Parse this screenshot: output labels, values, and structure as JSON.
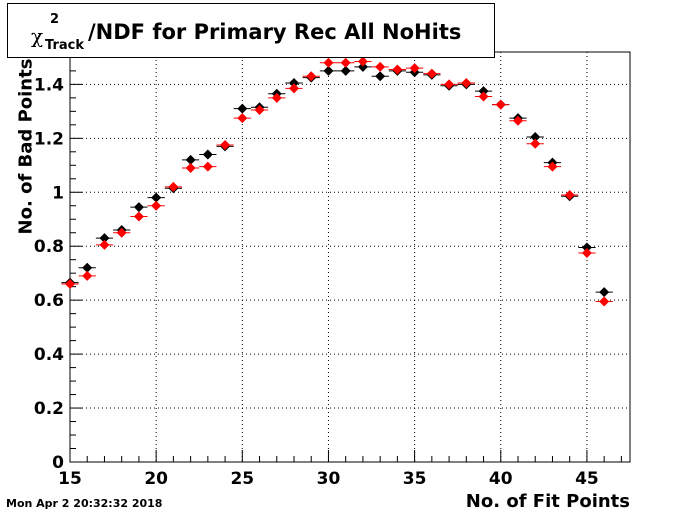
{
  "title": {
    "chi": "χ",
    "superscript": "2",
    "subscript": "Track",
    "main": "/NDF for Primary Rec All NoHits"
  },
  "footer": {
    "datestamp": "Mon Apr  2 20:32:32 2018"
  },
  "colors": {
    "series_black": "#000000",
    "series_red": "#ff0000",
    "frame": "#000000",
    "grid": "#000000"
  },
  "chart_data": {
    "type": "scatter",
    "title": "χ2Track/NDF for Primary Rec All NoHits",
    "xlabel": "No. of Fit Points",
    "ylabel": "No. of Bad Points",
    "xlim": [
      15,
      47.5
    ],
    "ylim": [
      0,
      1.52
    ],
    "grid": true,
    "x_ticks": [
      15,
      20,
      25,
      30,
      35,
      40,
      45
    ],
    "x_tick_labels": [
      "15",
      "20",
      "25",
      "30",
      "35",
      "40",
      "45"
    ],
    "y_ticks": [
      0,
      0.2,
      0.4,
      0.6,
      0.8,
      1,
      1.2,
      1.4
    ],
    "y_tick_labels": [
      "0",
      "0.2",
      "0.4",
      "0.6",
      "0.8",
      "1",
      "1.2",
      "1.4"
    ],
    "x": [
      15,
      16,
      17,
      18,
      19,
      20,
      21,
      22,
      23,
      24,
      25,
      26,
      27,
      28,
      29,
      30,
      31,
      32,
      33,
      34,
      35,
      36,
      37,
      38,
      39,
      40,
      41,
      42,
      43,
      44,
      45,
      46
    ],
    "series": [
      {
        "color": "#000000",
        "values": [
          0.665,
          0.72,
          0.83,
          0.86,
          0.945,
          0.98,
          1.015,
          1.12,
          1.14,
          1.17,
          1.31,
          1.315,
          1.365,
          1.405,
          1.425,
          1.45,
          1.45,
          1.465,
          1.43,
          1.45,
          1.445,
          1.435,
          1.395,
          1.4,
          1.375,
          1.325,
          1.275,
          1.205,
          1.11,
          0.985,
          0.795,
          0.63
        ]
      },
      {
        "color": "#ff0000",
        "values": [
          0.66,
          0.69,
          0.805,
          0.85,
          0.91,
          0.95,
          1.02,
          1.09,
          1.095,
          1.175,
          1.275,
          1.305,
          1.35,
          1.385,
          1.43,
          1.48,
          1.48,
          1.485,
          1.465,
          1.455,
          1.46,
          1.44,
          1.4,
          1.405,
          1.355,
          1.325,
          1.265,
          1.18,
          1.095,
          0.99,
          0.775,
          0.595
        ]
      }
    ]
  }
}
